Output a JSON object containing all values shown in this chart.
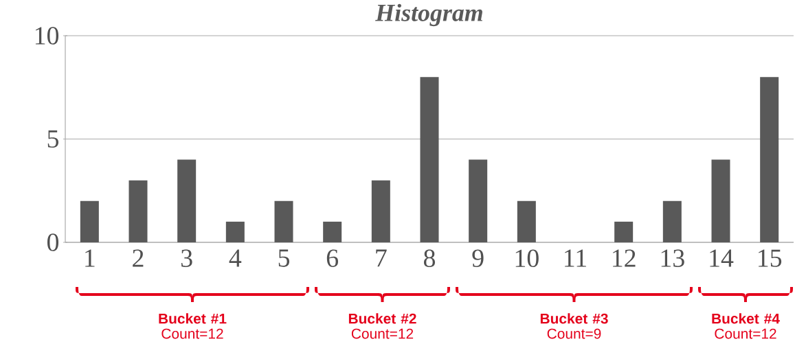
{
  "chart_data": {
    "type": "bar",
    "title": "Histogram",
    "x": [
      1,
      2,
      3,
      4,
      5,
      6,
      7,
      8,
      9,
      10,
      11,
      12,
      13,
      14,
      15
    ],
    "values": [
      2,
      3,
      4,
      1,
      2,
      1,
      3,
      8,
      4,
      2,
      0,
      1,
      2,
      4,
      8
    ],
    "color": "#595959",
    "xlim": [
      0.5,
      15.5
    ],
    "xticks": [
      1,
      2,
      3,
      4,
      5,
      6,
      7,
      8,
      9,
      10,
      11,
      12,
      13,
      14,
      15
    ],
    "ylim": [
      0,
      10
    ],
    "yticks": [
      0,
      5,
      10
    ],
    "grid": "y",
    "annotations": [
      "**Bucket #1** Count=12",
      "**Bucket #2** Count=12",
      "**Bucket #3** Count=9",
      "**Bucket #4** Count=12"
    ]
  }
}
